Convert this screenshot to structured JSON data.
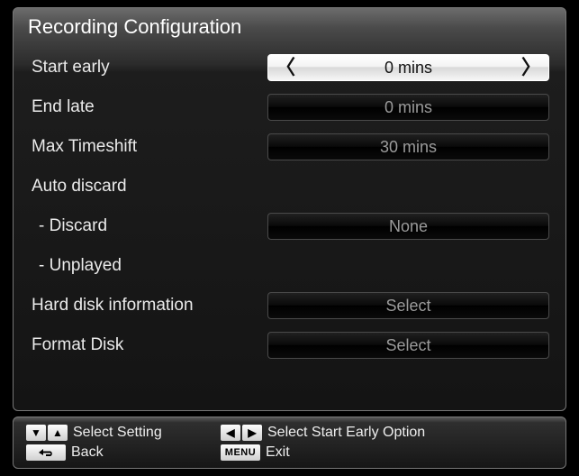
{
  "title": "Recording Configuration",
  "rows": [
    {
      "kind": "option",
      "label": "Start early",
      "value": "0 mins",
      "selected": true,
      "interactable": true,
      "name": "start-early"
    },
    {
      "kind": "option",
      "label": "End late",
      "value": "0 mins",
      "selected": false,
      "interactable": true,
      "name": "end-late"
    },
    {
      "kind": "option",
      "label": "Max Timeshift",
      "value": "30 mins",
      "selected": false,
      "interactable": true,
      "name": "max-timeshift"
    },
    {
      "kind": "header",
      "label": "Auto discard",
      "name": "auto-discard-header"
    },
    {
      "kind": "option",
      "label": " - Discard",
      "value": "None",
      "selected": false,
      "interactable": true,
      "name": "discard",
      "sub": true
    },
    {
      "kind": "header",
      "label": " - Unplayed",
      "name": "unplayed-header",
      "sub": true
    },
    {
      "kind": "option",
      "label": "Hard disk information",
      "value": "Select",
      "selected": false,
      "interactable": true,
      "name": "hard-disk-info"
    },
    {
      "kind": "option",
      "label": "Format Disk",
      "value": "Select",
      "selected": false,
      "interactable": true,
      "name": "format-disk"
    }
  ],
  "footer": {
    "select_setting": "Select Setting",
    "select_option": "Select Start Early Option",
    "back": "Back",
    "exit": "Exit",
    "menu_key": "MENU"
  },
  "glyphs": {
    "down": "▼",
    "up": "▲",
    "left": "◀",
    "right": "▶",
    "back": "↺",
    "chev_left": "〈",
    "chev_right": "〉"
  },
  "colors": {
    "background": "#000000",
    "border": "#777777",
    "text": "#eaeaea",
    "option_text": "#9b9b9b",
    "selected_text": "#111111",
    "key_bg_top": "#fdfdfd",
    "key_bg_bottom": "#cfcfcf"
  }
}
